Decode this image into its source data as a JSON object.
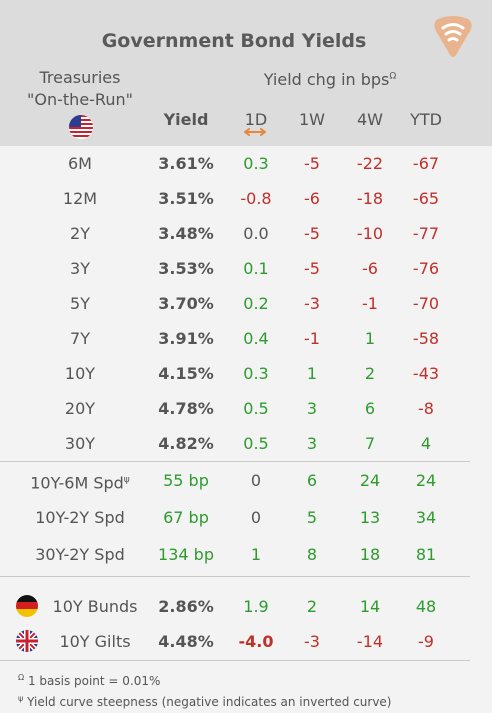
{
  "header": {
    "title": "Government Bond Yields",
    "treasuries_line1": "Treasuries",
    "treasuries_line2": "\"On-the-Run\"",
    "yield_chg": "Yield chg in bps",
    "yield_chg_sup": "Ω",
    "cols": [
      "Yield",
      "1D",
      "1W",
      "4W",
      "YTD"
    ]
  },
  "rows": [
    {
      "label": "6M",
      "yield": "3.61%",
      "d1": "0.3",
      "w1": "-5",
      "w4": "-22",
      "ytd": "-67"
    },
    {
      "label": "12M",
      "yield": "3.51%",
      "d1": "-0.8",
      "w1": "-6",
      "w4": "-18",
      "ytd": "-65"
    },
    {
      "label": "2Y",
      "yield": "3.48%",
      "d1": "0.0",
      "w1": "-5",
      "w4": "-10",
      "ytd": "-77"
    },
    {
      "label": "3Y",
      "yield": "3.53%",
      "d1": "0.1",
      "w1": "-5",
      "w4": "-6",
      "ytd": "-76"
    },
    {
      "label": "5Y",
      "yield": "3.70%",
      "d1": "0.2",
      "w1": "-3",
      "w4": "-1",
      "ytd": "-70"
    },
    {
      "label": "7Y",
      "yield": "3.91%",
      "d1": "0.4",
      "w1": "-1",
      "w4": "1",
      "ytd": "-58"
    },
    {
      "label": "10Y",
      "yield": "4.15%",
      "d1": "0.3",
      "w1": "1",
      "w4": "2",
      "ytd": "-43"
    },
    {
      "label": "20Y",
      "yield": "4.78%",
      "d1": "0.5",
      "w1": "3",
      "w4": "6",
      "ytd": "-8"
    },
    {
      "label": "30Y",
      "yield": "4.82%",
      "d1": "0.5",
      "w1": "3",
      "w4": "7",
      "ytd": "4"
    }
  ],
  "spreads": [
    {
      "label": "10Y-6M Spd",
      "sup": "ψ",
      "yield": "55 bp",
      "d1": "0",
      "w1": "6",
      "w4": "24",
      "ytd": "24"
    },
    {
      "label": "10Y-2Y Spd",
      "sup": "",
      "yield": "67 bp",
      "d1": "0",
      "w1": "5",
      "w4": "13",
      "ytd": "34"
    },
    {
      "label": "30Y-2Y Spd",
      "sup": "",
      "yield": "134 bp",
      "d1": "1",
      "w1": "8",
      "w4": "18",
      "ytd": "81"
    }
  ],
  "intl": [
    {
      "label": "10Y Bunds",
      "yield": "2.86%",
      "d1": "1.9",
      "w1": "2",
      "w4": "14",
      "ytd": "48"
    },
    {
      "label": "10Y Gilts",
      "yield": "4.48%",
      "d1": "-4.0",
      "w1": "-3",
      "w4": "-14",
      "ytd": "-9"
    }
  ],
  "footnotes": {
    "f1_sym": "Ω",
    "f1": " 1 basis point = 0.01%",
    "f2_sym": "ψ",
    "f2": " Yield curve steepness (negative indicates an inverted curve)"
  },
  "colors": {
    "positive": "#2e9b2e",
    "negative": "#c0302a",
    "accent": "#e8873a"
  }
}
